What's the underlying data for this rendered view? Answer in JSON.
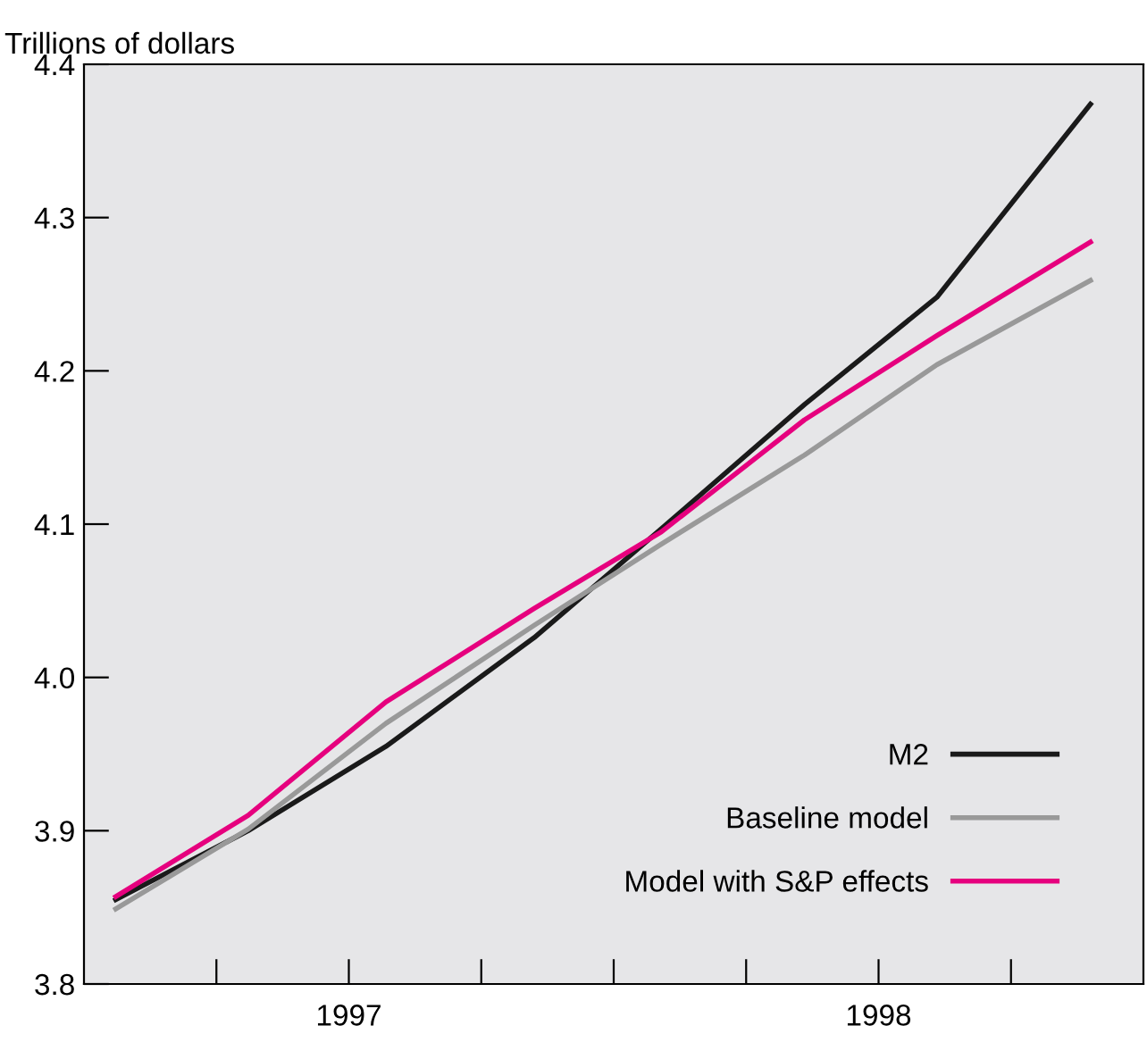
{
  "chart_data": {
    "type": "line",
    "ylabel": "Trillions of dollars",
    "xlim": [
      1996.5,
      1998.5
    ],
    "ylim": [
      3.8,
      4.4
    ],
    "xticks": [
      {
        "value": 1996.75,
        "label": null
      },
      {
        "value": 1997,
        "label": "1997"
      },
      {
        "value": 1997.25,
        "label": null
      },
      {
        "value": 1997.5,
        "label": null
      },
      {
        "value": 1997.75,
        "label": null
      },
      {
        "value": 1998,
        "label": "1998"
      },
      {
        "value": 1998.25,
        "label": null
      }
    ],
    "yticks": [
      {
        "value": 3.8,
        "label": "3.8"
      },
      {
        "value": 3.9,
        "label": "3.9"
      },
      {
        "value": 4.0,
        "label": "4.0"
      },
      {
        "value": 4.1,
        "label": "4.1"
      },
      {
        "value": 4.2,
        "label": "4.2"
      },
      {
        "value": 4.3,
        "label": "4.3"
      },
      {
        "value": 4.4,
        "label": "4.4"
      }
    ],
    "x": [
      1996.56,
      1996.81,
      1997.07,
      1997.35,
      1997.59,
      1997.86,
      1998.11,
      1998.4
    ],
    "series": [
      {
        "name": "M2",
        "color": "#1a1a1a",
        "values": [
          3.855,
          3.9,
          3.955,
          4.026,
          4.097,
          4.178,
          4.248,
          4.374
        ]
      },
      {
        "name": "Baseline model",
        "color": "#999999",
        "values": [
          3.849,
          3.901,
          3.97,
          4.034,
          4.087,
          4.145,
          4.204,
          4.259
        ]
      },
      {
        "name": "Model with S&P effects",
        "color": "#e6007e",
        "values": [
          3.857,
          3.91,
          3.984,
          4.045,
          4.095,
          4.168,
          4.223,
          4.284
        ]
      }
    ],
    "legend": "lower right",
    "grid": false
  }
}
